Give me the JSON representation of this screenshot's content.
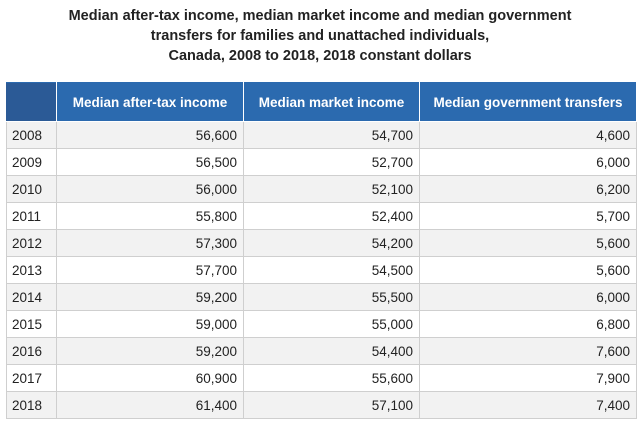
{
  "title": {
    "line1": "Median after-tax income, median market income and median government",
    "line2": "transfers for families and unattached individuals,",
    "line3": "Canada, 2008 to 2018, 2018 constant dollars"
  },
  "chart_data": {
    "type": "table",
    "columns": [
      "",
      "Median after-tax income",
      "Median market income",
      "Median government transfers"
    ],
    "rows": [
      {
        "year": "2008",
        "after_tax": "56,600",
        "market": "54,700",
        "transfers": "4,600"
      },
      {
        "year": "2009",
        "after_tax": "56,500",
        "market": "52,700",
        "transfers": "6,000"
      },
      {
        "year": "2010",
        "after_tax": "56,000",
        "market": "52,100",
        "transfers": "6,200"
      },
      {
        "year": "2011",
        "after_tax": "55,800",
        "market": "52,400",
        "transfers": "5,700"
      },
      {
        "year": "2012",
        "after_tax": "57,300",
        "market": "54,200",
        "transfers": "5,600"
      },
      {
        "year": "2013",
        "after_tax": "57,700",
        "market": "54,500",
        "transfers": "5,600"
      },
      {
        "year": "2014",
        "after_tax": "59,200",
        "market": "55,500",
        "transfers": "6,000"
      },
      {
        "year": "2015",
        "after_tax": "59,000",
        "market": "55,000",
        "transfers": "6,800"
      },
      {
        "year": "2016",
        "after_tax": "59,200",
        "market": "54,400",
        "transfers": "7,600"
      },
      {
        "year": "2017",
        "after_tax": "60,900",
        "market": "55,600",
        "transfers": "7,900"
      },
      {
        "year": "2018",
        "after_tax": "61,400",
        "market": "57,100",
        "transfers": "7,400"
      }
    ]
  }
}
